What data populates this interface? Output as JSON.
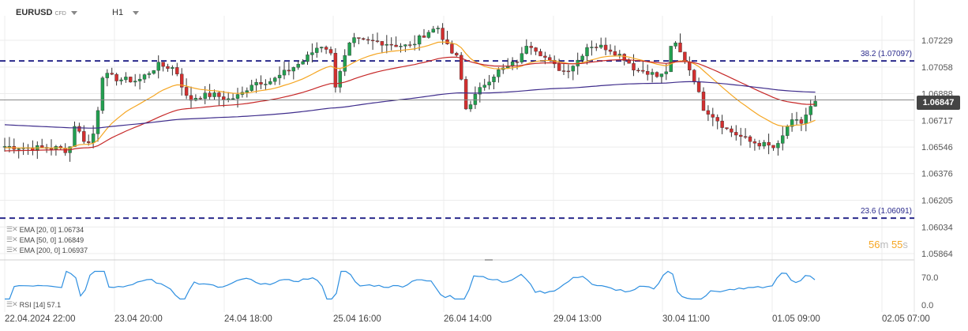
{
  "header": {
    "symbol": "EURUSD",
    "instrument_type": "CFD",
    "timeframe": "H1"
  },
  "indicators": [
    {
      "label": "EMA [20, 0] 1.06734",
      "color": "#f5a623"
    },
    {
      "label": "EMA [50, 0] 1.06849",
      "color": "#c62828"
    },
    {
      "label": "EMA [200, 0] 1.06937",
      "color": "#3f2d8c"
    }
  ],
  "rsi": {
    "label": "RSI [14] 57.1",
    "color": "#2e8fe0",
    "levels": [
      "70.0",
      "0.0"
    ]
  },
  "timer": {
    "minutes": "56",
    "m": "m",
    "seconds": "55",
    "s": "s"
  },
  "current_price": "1.06847",
  "colors": {
    "bull": "#22a050",
    "bear": "#d32f2f",
    "fib": "#2a2a8c",
    "grid": "#ececec"
  },
  "chart_data": {
    "type": "candlestick",
    "y_ticks": [
      "1.07229",
      "1.07058",
      "1.06888",
      "1.06717",
      "1.06546",
      "1.06376",
      "1.06205",
      "1.06034",
      "1.05864"
    ],
    "x_ticks": [
      "22.04.2024 22:00",
      "23.04 20:00",
      "24.04 18:00",
      "25.04 16:00",
      "26.04 14:00",
      "29.04 13:00",
      "30.04 11:00",
      "01.05 09:00",
      "02.05 07:00"
    ],
    "fib_levels": [
      {
        "label": "38.2 (1.07097)",
        "value": 1.07097
      },
      {
        "label": "23.6 (1.06091)",
        "value": 1.06091
      }
    ],
    "last_price": 1.06847
  }
}
